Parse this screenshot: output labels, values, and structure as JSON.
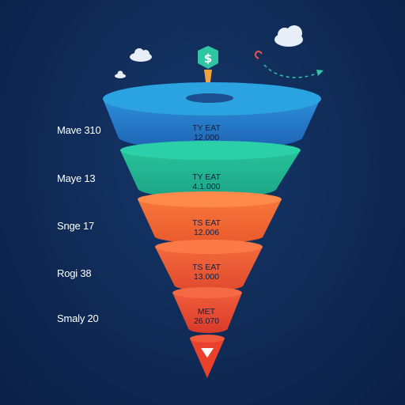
{
  "stages": [
    {
      "side_label": "Mave 310",
      "title": "TY EAT",
      "value": "12.000",
      "color": "#1f73c4"
    },
    {
      "side_label": "Maye 13",
      "title": "TY EAT",
      "value": "4.1.000",
      "color": "#22b892"
    },
    {
      "side_label": "Snge 17",
      "title": "TS EAT",
      "value": "12.006",
      "color": "#f26a36"
    },
    {
      "side_label": "Rogi 38",
      "title": "TS EAT",
      "value": "13.000",
      "color": "#f05a3a"
    },
    {
      "side_label": "Smaly 20",
      "title": "MET",
      "value": "26.070",
      "color": "#ef4a33"
    }
  ],
  "icons": {
    "top": "dollar-bulb-icon",
    "bottom": "down-triangle-icon",
    "arrow": "dashed-arrow-icon",
    "cloud": "cloud-icon"
  },
  "accent_colors": {
    "background": "#0f2a55",
    "arrow": "#2ec6a3",
    "bulb_cap": "#2ec6a3",
    "bulb_stem": "#f2a23a",
    "loop": "#e2584a"
  }
}
